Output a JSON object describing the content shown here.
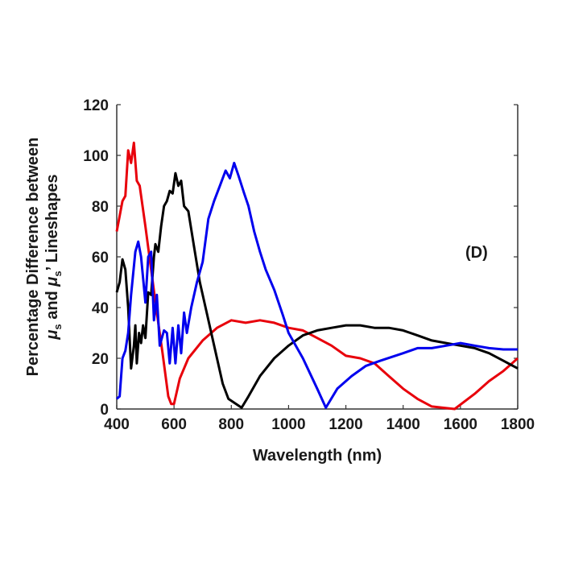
{
  "chart_data": {
    "type": "line",
    "title": "",
    "annotation": "(D)",
    "xlabel": "Wavelength (nm)",
    "ylabel_line1": "Percentage Difference between",
    "ylabel_line2_parts": [
      "μ",
      "s",
      " and ",
      "μ",
      "s",
      "’ Lineshapes"
    ],
    "xlim": [
      400,
      1800
    ],
    "ylim": [
      0,
      120
    ],
    "xticks": [
      400,
      600,
      800,
      1000,
      1200,
      1400,
      1600,
      1800
    ],
    "yticks": [
      0,
      20,
      40,
      60,
      80,
      100,
      120
    ],
    "grid": false,
    "series": [
      {
        "name": "red",
        "color": "#e8000b",
        "x": [
          400,
          420,
          430,
          440,
          450,
          460,
          470,
          480,
          500,
          520,
          540,
          560,
          580,
          590,
          600,
          620,
          650,
          700,
          750,
          800,
          850,
          900,
          950,
          1000,
          1050,
          1100,
          1150,
          1200,
          1250,
          1300,
          1350,
          1400,
          1450,
          1500,
          1580,
          1650,
          1700,
          1750,
          1800
        ],
        "y": [
          70,
          82,
          84,
          102,
          97,
          105,
          90,
          88,
          72,
          55,
          38,
          22,
          5,
          2,
          2,
          12,
          20,
          27,
          32,
          35,
          34,
          35,
          34,
          32,
          31,
          28,
          25,
          21,
          20,
          18,
          13,
          8,
          4,
          1,
          0,
          6,
          11,
          15,
          20
        ]
      },
      {
        "name": "black",
        "color": "#000000",
        "x": [
          400,
          410,
          420,
          430,
          440,
          450,
          460,
          465,
          470,
          478,
          485,
          492,
          500,
          510,
          520,
          530,
          535,
          545,
          555,
          565,
          575,
          585,
          595,
          605,
          615,
          625,
          635,
          650,
          670,
          690,
          710,
          730,
          750,
          770,
          790,
          836,
          860,
          900,
          950,
          1000,
          1050,
          1100,
          1150,
          1200,
          1250,
          1300,
          1350,
          1400,
          1450,
          1500,
          1550,
          1600,
          1650,
          1700,
          1750,
          1800
        ],
        "y": [
          46,
          50,
          59,
          55,
          40,
          16,
          25,
          33,
          18,
          30,
          26,
          33,
          28,
          46,
          45,
          60,
          65,
          62,
          72,
          80,
          82,
          86,
          85,
          93,
          88,
          90,
          80,
          78,
          64,
          50,
          40,
          30,
          20,
          10,
          4,
          0.5,
          5,
          13,
          20,
          25,
          29,
          31,
          32,
          33,
          33,
          32,
          32,
          31,
          29,
          27,
          26,
          25,
          24,
          22,
          19,
          16
        ]
      },
      {
        "name": "blue",
        "color": "#0000ee",
        "x": [
          400,
          410,
          420,
          430,
          440,
          450,
          465,
          475,
          485,
          500,
          510,
          520,
          530,
          540,
          550,
          565,
          575,
          585,
          595,
          605,
          615,
          625,
          635,
          645,
          660,
          680,
          700,
          720,
          740,
          760,
          780,
          795,
          810,
          825,
          845,
          860,
          880,
          900,
          920,
          950,
          980,
          1000,
          1050,
          1100,
          1130,
          1170,
          1220,
          1270,
          1320,
          1400,
          1450,
          1500,
          1550,
          1600,
          1650,
          1700,
          1750,
          1800
        ],
        "y": [
          4,
          5,
          20,
          23,
          30,
          45,
          62,
          66,
          60,
          42,
          60,
          62,
          35,
          45,
          25,
          31,
          30,
          18,
          32,
          18,
          33,
          22,
          38,
          30,
          40,
          50,
          58,
          75,
          82,
          88,
          94,
          91,
          97,
          92,
          85,
          80,
          70,
          62,
          55,
          47,
          37,
          30,
          20,
          8,
          0.5,
          8,
          13,
          17,
          19,
          22,
          24,
          24,
          25,
          26,
          25,
          24,
          23.5,
          23.5
        ]
      }
    ]
  }
}
